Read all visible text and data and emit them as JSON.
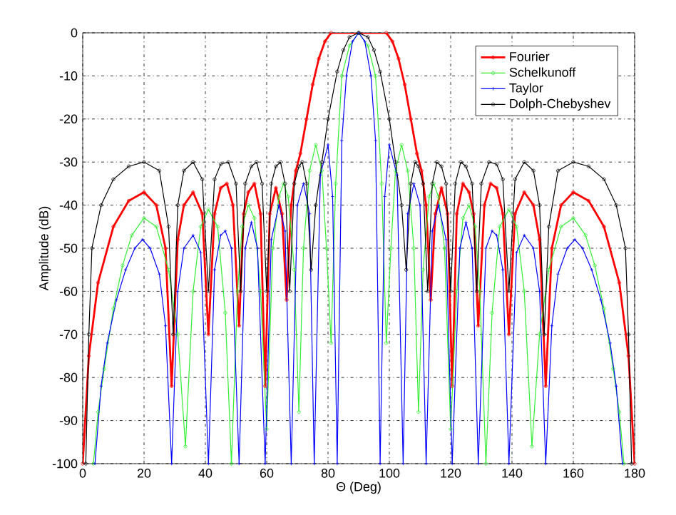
{
  "chart_data": {
    "type": "line",
    "xlabel": "Θ (Deg)",
    "ylabel": "Amplitude (dB)",
    "xlim": [
      0,
      180
    ],
    "ylim": [
      -100,
      0
    ],
    "xticks": [
      0,
      20,
      40,
      60,
      80,
      100,
      120,
      140,
      160,
      180
    ],
    "yticks": [
      -100,
      -90,
      -80,
      -70,
      -60,
      -50,
      -40,
      -30,
      -20,
      -10,
      0
    ],
    "grid": true,
    "legend": "top right",
    "series": [
      {
        "name": "Fourier",
        "color": "#ff0000",
        "marker": "circle",
        "x": [
          0,
          2,
          5,
          10,
          15,
          20,
          24,
          27,
          29,
          31,
          33,
          36,
          39,
          41,
          43,
          45,
          47,
          49,
          51,
          52.5,
          54,
          56,
          58,
          59.5,
          61,
          63,
          65,
          66.5,
          68,
          69.5,
          71,
          73,
          75,
          77,
          79,
          81,
          90,
          99,
          101,
          103,
          105,
          107,
          109,
          110.5,
          112,
          113.5,
          115,
          117,
          119,
          120.5,
          122,
          124,
          126,
          127.5,
          129,
          131,
          133,
          135,
          137,
          139,
          141,
          144,
          147,
          149,
          151,
          153,
          156,
          160,
          165,
          170,
          175,
          178,
          180
        ],
        "values": [
          -100,
          -75,
          -58,
          -45,
          -39,
          -37,
          -40,
          -50,
          -82,
          -48,
          -40,
          -37,
          -42,
          -70,
          -42,
          -36,
          -35,
          -40,
          -68,
          -42,
          -37,
          -35,
          -42,
          -82,
          -42,
          -36,
          -42,
          -62,
          -40,
          -32,
          -28,
          -20,
          -12,
          -6,
          -2,
          0,
          0,
          0,
          -2,
          -6,
          -12,
          -20,
          -28,
          -32,
          -40,
          -62,
          -42,
          -36,
          -42,
          -82,
          -42,
          -35,
          -37,
          -42,
          -68,
          -40,
          -35,
          -36,
          -42,
          -70,
          -42,
          -37,
          -40,
          -48,
          -82,
          -50,
          -40,
          -37,
          -39,
          -45,
          -58,
          -75,
          -100
        ]
      },
      {
        "name": "Schelkunoff",
        "color": "#33ee33",
        "marker": "circle",
        "x": [
          3.5,
          5,
          7,
          10,
          13,
          16,
          20,
          24,
          28,
          31,
          33.5,
          36,
          38.5,
          41,
          44,
          46.5,
          48.5,
          50.5,
          52,
          54,
          56,
          58,
          60,
          62,
          64,
          65.5,
          67,
          69,
          70.5,
          72,
          74,
          76,
          78,
          79.5,
          81,
          82.5,
          84.5,
          87,
          90,
          93,
          95.5,
          97.5,
          99,
          100.5,
          102,
          104,
          106,
          108,
          109.5,
          111,
          113,
          114.5,
          116,
          118,
          120,
          122,
          124,
          126,
          128,
          129.5,
          131.5,
          133.5,
          136,
          139,
          141.5,
          144,
          146.5,
          149,
          152,
          156,
          160,
          164,
          167,
          170,
          173,
          175,
          176.5
        ],
        "values": [
          -100,
          -88,
          -78,
          -64,
          -54,
          -47,
          -43,
          -45,
          -55,
          -70,
          -96,
          -60,
          -45,
          -41,
          -45,
          -65,
          -100,
          -60,
          -45,
          -40,
          -43,
          -60,
          -92,
          -50,
          -38,
          -35,
          -38,
          -55,
          -88,
          -50,
          -32,
          -26,
          -32,
          -50,
          -72,
          -35,
          -10,
          -3,
          0,
          -3,
          -10,
          -35,
          -72,
          -50,
          -32,
          -26,
          -32,
          -50,
          -88,
          -55,
          -38,
          -35,
          -38,
          -50,
          -92,
          -60,
          -43,
          -40,
          -45,
          -60,
          -100,
          -65,
          -45,
          -41,
          -45,
          -60,
          -96,
          -70,
          -55,
          -45,
          -43,
          -47,
          -54,
          -64,
          -78,
          -88,
          -100
        ]
      },
      {
        "name": "Taylor",
        "color": "#0000ff",
        "marker": "cross",
        "x": [
          4,
          6,
          8,
          11,
          14,
          17,
          19.5,
          22,
          25,
          27,
          29,
          31,
          33,
          36,
          38.5,
          41,
          43,
          45,
          46.5,
          48.5,
          51,
          53,
          55,
          57,
          59.5,
          61.5,
          64,
          66,
          68,
          70,
          72,
          74,
          75.5,
          77.5,
          80,
          81.5,
          83,
          84.5,
          86,
          88,
          90,
          92,
          94,
          95.5,
          97,
          98.5,
          100,
          102.5,
          104.5,
          106,
          108,
          110,
          112,
          114,
          116,
          118.5,
          120.5,
          123,
          125,
          127,
          129,
          131.5,
          133.5,
          135,
          137,
          139,
          141.5,
          144,
          147,
          149,
          151,
          153,
          155,
          158,
          160.5,
          163,
          166,
          169,
          172,
          174,
          176
        ],
        "values": [
          -100,
          -82,
          -72,
          -62,
          -55,
          -50,
          -48,
          -50,
          -56,
          -68,
          -100,
          -60,
          -50,
          -47,
          -51,
          -100,
          -55,
          -47,
          -46,
          -50,
          -100,
          -50,
          -44,
          -50,
          -100,
          -48,
          -40,
          -46,
          -100,
          -40,
          -35,
          -42,
          -100,
          -33,
          -26,
          -38,
          -100,
          -25,
          -10,
          -2,
          0,
          -2,
          -10,
          -25,
          -100,
          -38,
          -26,
          -33,
          -100,
          -42,
          -35,
          -40,
          -100,
          -46,
          -40,
          -48,
          -100,
          -50,
          -44,
          -50,
          -100,
          -50,
          -46,
          -47,
          -55,
          -100,
          -51,
          -47,
          -50,
          -60,
          -100,
          -68,
          -56,
          -50,
          -48,
          -50,
          -55,
          -62,
          -72,
          -82,
          -100
        ]
      },
      {
        "name": "Dolph-Chebyshev",
        "color": "#000000",
        "marker": "circle",
        "x": [
          1,
          2,
          3,
          6,
          10,
          15,
          20,
          25,
          28,
          29.5,
          31,
          33,
          36,
          39,
          41,
          43,
          45,
          47.5,
          50,
          51.5,
          53,
          55,
          56.7,
          58.5,
          60,
          61.5,
          63,
          64.5,
          66,
          67.5,
          69,
          70.5,
          71.6,
          73,
          74.5,
          76,
          78,
          80,
          83,
          85,
          87,
          90,
          93,
          95,
          97,
          100,
          102,
          104,
          105.5,
          107,
          108.4,
          109.5,
          111,
          112.5,
          114,
          115.5,
          117,
          118.5,
          120,
          121.5,
          123.3,
          125,
          127,
          128.5,
          130,
          132.5,
          135,
          137,
          139,
          141,
          144,
          147,
          149,
          150.5,
          152,
          155,
          160,
          165,
          170,
          174,
          177,
          178,
          179
        ],
        "values": [
          -100,
          -70,
          -50,
          -40,
          -34,
          -31,
          -30,
          -32,
          -45,
          -70,
          -40,
          -32,
          -30,
          -34,
          -60,
          -34,
          -30.5,
          -30,
          -35,
          -60,
          -35,
          -31,
          -30,
          -35,
          -60,
          -35,
          -31,
          -30,
          -35,
          -60,
          -35,
          -31,
          -30,
          -35,
          -55,
          -40,
          -30,
          -20,
          -9,
          -4,
          -1,
          0,
          -1,
          -4,
          -9,
          -20,
          -30,
          -40,
          -55,
          -35,
          -30,
          -31,
          -35,
          -60,
          -35,
          -30,
          -31,
          -35,
          -60,
          -35,
          -30,
          -31,
          -35,
          -60,
          -35,
          -30,
          -30.5,
          -34,
          -60,
          -34,
          -30,
          -32,
          -40,
          -70,
          -45,
          -32,
          -30,
          -31,
          -34,
          -40,
          -50,
          -70,
          -100
        ]
      }
    ]
  }
}
